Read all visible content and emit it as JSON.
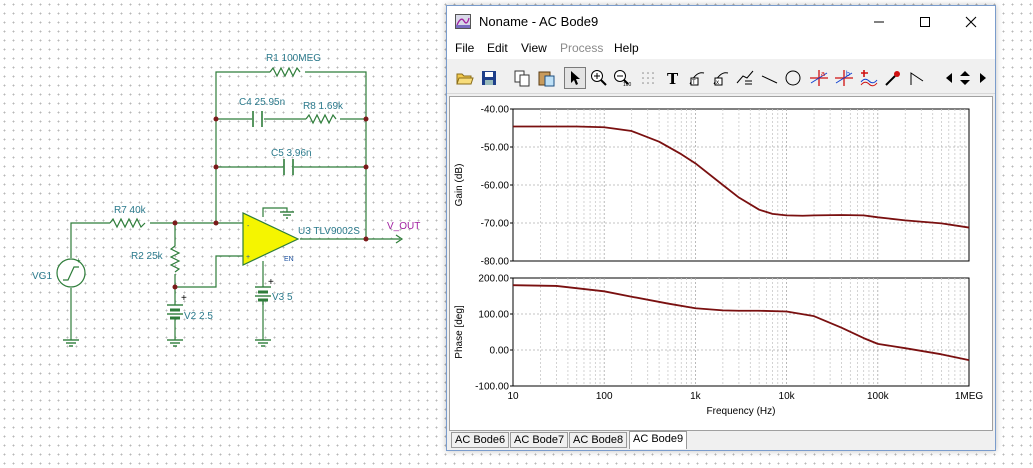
{
  "schematic": {
    "labels": {
      "r1": "R1 100MEG",
      "c4": "C4 25.95n",
      "r8": "R8 1.69k",
      "c5": "C5 3.96n",
      "r7": "R7 40k",
      "r2": "R2 25k",
      "u3": "U3 TLV9002S",
      "en": "EN",
      "vout": "V_OUT",
      "vg1": "VG1",
      "v2": "V2 2.5",
      "v3": "V3 5",
      "plus": "+",
      "minus": "-"
    }
  },
  "window": {
    "title": "Noname - AC Bode9",
    "menu": [
      {
        "label": "File",
        "enabled": true
      },
      {
        "label": "Edit",
        "enabled": true
      },
      {
        "label": "View",
        "enabled": true
      },
      {
        "label": "Process",
        "enabled": false
      },
      {
        "label": "Help",
        "enabled": true
      }
    ],
    "toolbar_icons": [
      "open-icon",
      "save-icon",
      "copy-icon",
      "paste-icon",
      "pointer-icon",
      "zoom-in-icon",
      "zoom-100-icon",
      "grid-icon",
      "text-icon",
      "marker-icon",
      "marker-icon",
      "curve-icon",
      "line-icon",
      "circle-icon",
      "cursor-a-icon",
      "cursor-b-icon",
      "add-icon",
      "probe-icon",
      "arrow-icon",
      "nav-icon"
    ],
    "tabs": [
      "AC Bode6",
      "AC Bode7",
      "AC Bode8",
      "AC Bode9"
    ],
    "active_tab": "AC Bode9"
  },
  "chart_data": [
    {
      "type": "line",
      "title": "",
      "xlabel": "",
      "ylabel": "Gain (dB)",
      "xscale": "log",
      "xlim": [
        10,
        1000000
      ],
      "ylim": [
        -80,
        -40
      ],
      "ytick_labels": [
        "-40.00",
        "-50.00",
        "-60.00",
        "-70.00",
        "-80.00"
      ],
      "grid": true,
      "color": "#7a1010",
      "series": [
        {
          "x": [
            10,
            20,
            50,
            100,
            200,
            400,
            700,
            1000,
            2000,
            3000,
            5000,
            7000,
            10000,
            15000,
            20000,
            40000,
            70000,
            100000,
            200000,
            500000,
            1000000
          ],
          "y": [
            -44.6,
            -44.6,
            -44.6,
            -44.8,
            -45.8,
            -48.6,
            -51.9,
            -54.3,
            -60.0,
            -63.3,
            -66.5,
            -67.6,
            -68.0,
            -68.1,
            -68.0,
            -67.9,
            -68.0,
            -68.5,
            -69.3,
            -70.1,
            -71.2
          ]
        }
      ]
    },
    {
      "type": "line",
      "title": "",
      "xlabel": "Frequency (Hz)",
      "ylabel": "Phase [deg]",
      "xscale": "log",
      "xlim": [
        10,
        1000000
      ],
      "ylim": [
        -100,
        200
      ],
      "xtick_labels": [
        "10",
        "100",
        "1k",
        "10k",
        "100k",
        "1MEG"
      ],
      "ytick_labels": [
        "200.00",
        "100.00",
        "0.00",
        "-100.00"
      ],
      "grid": true,
      "color": "#7a1010",
      "series": [
        {
          "x": [
            10,
            30,
            100,
            200,
            500,
            1000,
            2000,
            3000,
            5000,
            10000,
            20000,
            40000,
            70000,
            100000,
            200000,
            500000,
            1000000
          ],
          "y": [
            180,
            178,
            163,
            148,
            129,
            116,
            110,
            109,
            109,
            107,
            94,
            62,
            33,
            17,
            5,
            -12,
            -28
          ]
        }
      ]
    }
  ]
}
